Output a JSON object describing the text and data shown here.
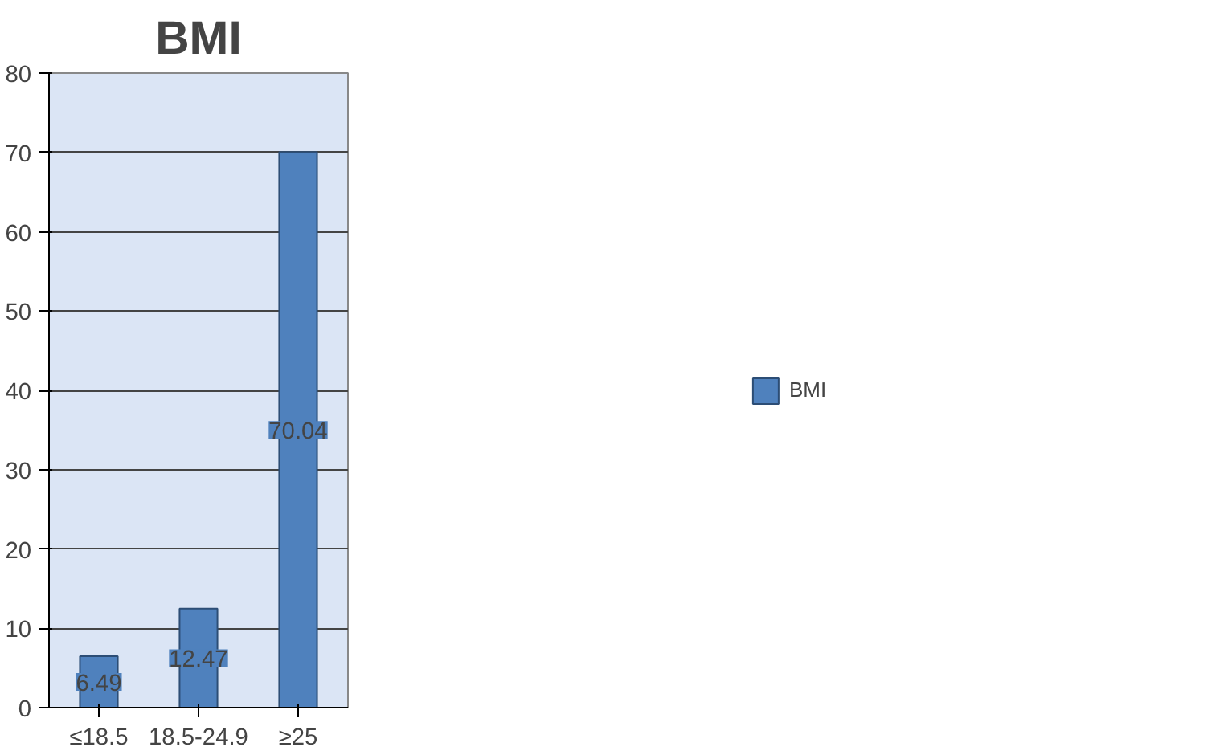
{
  "chart_data": {
    "type": "bar",
    "title": "BMI",
    "categories": [
      "≤18.5",
      "18.5-24.9",
      "≥25"
    ],
    "series": [
      {
        "name": "BMI",
        "color": "#4f81bd",
        "values": [
          6.49,
          12.47,
          70.04
        ]
      }
    ],
    "ylim": [
      0,
      80
    ],
    "yticks": [
      0,
      10,
      20,
      30,
      40,
      50,
      60,
      70,
      80
    ],
    "grid": "y",
    "legend": "right",
    "data_labels": true
  }
}
